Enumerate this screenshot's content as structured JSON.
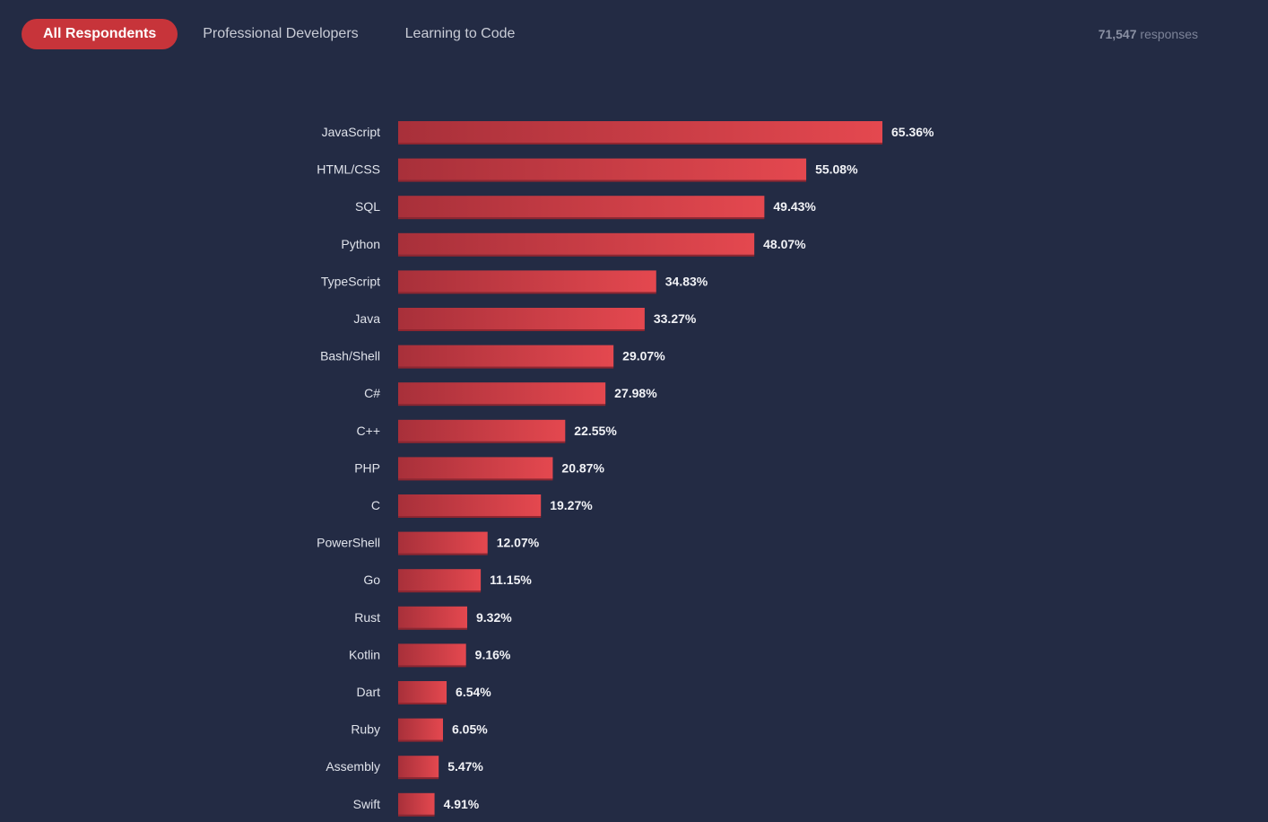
{
  "filters": {
    "tabs": [
      {
        "label": "All Respondents",
        "active": true
      },
      {
        "label": "Professional Developers",
        "active": false
      },
      {
        "label": "Learning to Code",
        "active": false
      }
    ],
    "responses_count": "71,547",
    "responses_label": "responses"
  },
  "colors": {
    "background": "#232b44",
    "bar_dark": "#a8303a",
    "bar_light": "#e4484f",
    "active_tab": "#c7343a"
  },
  "chart_data": {
    "type": "bar",
    "orientation": "horizontal",
    "title": "",
    "xlabel": "",
    "ylabel": "",
    "xlim": [
      0,
      70
    ],
    "grid": false,
    "legend": "none",
    "value_unit": "%",
    "categories": [
      "JavaScript",
      "HTML/CSS",
      "SQL",
      "Python",
      "TypeScript",
      "Java",
      "Bash/Shell",
      "C#",
      "C++",
      "PHP",
      "C",
      "PowerShell",
      "Go",
      "Rust",
      "Kotlin",
      "Dart",
      "Ruby",
      "Assembly",
      "Swift"
    ],
    "values": [
      65.36,
      55.08,
      49.43,
      48.07,
      34.83,
      33.27,
      29.07,
      27.98,
      22.55,
      20.87,
      19.27,
      12.07,
      11.15,
      9.32,
      9.16,
      6.54,
      6.05,
      5.47,
      4.91
    ],
    "value_labels": [
      "65.36%",
      "55.08%",
      "49.43%",
      "48.07%",
      "34.83%",
      "33.27%",
      "29.07%",
      "27.98%",
      "22.55%",
      "20.87%",
      "19.27%",
      "12.07%",
      "11.15%",
      "9.32%",
      "9.16%",
      "6.54%",
      "6.05%",
      "5.47%",
      "4.91%"
    ]
  }
}
